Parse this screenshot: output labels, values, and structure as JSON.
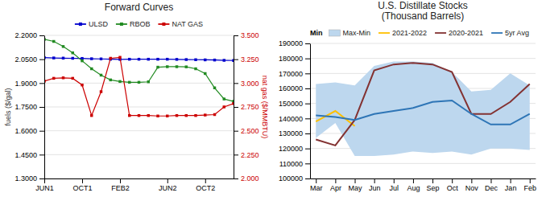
{
  "chart_data": [
    {
      "type": "line",
      "title": "Forward Curves",
      "x": [
        0,
        1,
        2,
        3,
        4,
        5,
        6,
        7,
        8,
        9,
        10,
        11,
        12,
        13,
        14,
        15,
        16,
        17,
        18,
        19,
        20
      ],
      "xlim": [
        0,
        20
      ],
      "xticks": [
        {
          "value": 0,
          "label": "JUN1"
        },
        {
          "value": 4,
          "label": "OCT1"
        },
        {
          "value": 8,
          "label": "FEB2"
        },
        {
          "value": 13,
          "label": "JUN2"
        },
        {
          "value": 17,
          "label": "OCT2"
        }
      ],
      "ylabel": "fuels ($/gal)",
      "y2label": "nat gas ($/MMBTU)",
      "ylim": [
        1.3,
        2.2
      ],
      "yticks": [
        {
          "value": 1.3,
          "label": "1.3000"
        },
        {
          "value": 1.45,
          "label": "1.4500"
        },
        {
          "value": 1.6,
          "label": "1.6000"
        },
        {
          "value": 1.75,
          "label": "1.7500"
        },
        {
          "value": 1.9,
          "label": "1.9000"
        },
        {
          "value": 2.05,
          "label": "2.0500"
        },
        {
          "value": 2.2,
          "label": "2.2000"
        }
      ],
      "y2lim": [
        2.0,
        3.5
      ],
      "y2ticks": [
        {
          "value": 2.0,
          "label": "2.000"
        },
        {
          "value": 2.25,
          "label": "2.250"
        },
        {
          "value": 2.5,
          "label": "2.500"
        },
        {
          "value": 2.75,
          "label": "2.750"
        },
        {
          "value": 3.0,
          "label": "3.000"
        },
        {
          "value": 3.25,
          "label": "3.250"
        },
        {
          "value": 3.5,
          "label": "3.500"
        }
      ],
      "grid": true,
      "legend": "top",
      "series": [
        {
          "name": "ULSD",
          "color": "#0000CD",
          "marker": "square",
          "values": [
            2.06,
            2.058,
            2.057,
            2.056,
            2.055,
            2.053,
            2.052,
            2.05,
            2.049,
            2.05,
            2.05,
            2.05,
            2.05,
            2.05,
            2.049,
            2.048,
            2.047,
            2.046,
            2.045,
            2.043,
            2.042
          ]
        },
        {
          "name": "RBOB",
          "color": "#228B22",
          "marker": "square",
          "values": [
            2.175,
            2.162,
            2.13,
            2.09,
            2.04,
            1.99,
            1.95,
            1.92,
            1.91,
            1.905,
            1.905,
            1.908,
            2.0,
            2.003,
            2.003,
            2.002,
            1.99,
            1.96,
            1.87,
            1.8,
            1.785
          ]
        },
        {
          "name": "NAT GAS",
          "color": "#CC0000",
          "marker": "square",
          "axis": "y2",
          "values": [
            3.02,
            3.05,
            3.055,
            3.05,
            2.98,
            2.66,
            2.91,
            3.26,
            3.27,
            2.66,
            2.66,
            2.66,
            2.655,
            2.655,
            2.66,
            2.66,
            2.66,
            2.665,
            2.67,
            2.75,
            2.785
          ]
        }
      ]
    },
    {
      "type": "line",
      "title": "U.S. Distillate Stocks\n(Thousand Barrels)",
      "categories": [
        "Mar",
        "Apr",
        "May",
        "Jun",
        "Jul",
        "Aug",
        "Sep",
        "Oct",
        "Nov",
        "Dec",
        "Jan",
        "Feb"
      ],
      "ylim": [
        100000,
        190000
      ],
      "yticks": [
        100000,
        110000,
        120000,
        130000,
        140000,
        150000,
        160000,
        170000,
        180000,
        190000
      ],
      "grid": true,
      "legend": "upper left",
      "legend_title": "Min",
      "series": [
        {
          "name": "Max-Min",
          "type": "area",
          "color": "#BDD7EE",
          "low": [
            127000,
            137000,
            115000,
            115000,
            116000,
            118000,
            117000,
            118000,
            116000,
            120000,
            120000,
            119000
          ],
          "high": [
            163000,
            164000,
            162000,
            175000,
            178000,
            178000,
            177000,
            171000,
            158000,
            159000,
            170000,
            162000
          ]
        },
        {
          "name": "2021-2022",
          "color": "#FFC000",
          "values": [
            138000,
            145000,
            135000,
            null,
            null,
            null,
            null,
            null,
            null,
            null,
            null,
            null
          ]
        },
        {
          "name": "2020-2021",
          "color": "#833232",
          "values": [
            126000,
            122000,
            139000,
            172000,
            176000,
            177000,
            176000,
            171000,
            143000,
            143000,
            151000,
            163000
          ]
        },
        {
          "name": "5yr Avg",
          "color": "#2E75B6",
          "values": [
            142000,
            141000,
            139000,
            143000,
            145000,
            147000,
            151000,
            152000,
            143000,
            136000,
            136000,
            143000
          ]
        }
      ]
    }
  ]
}
